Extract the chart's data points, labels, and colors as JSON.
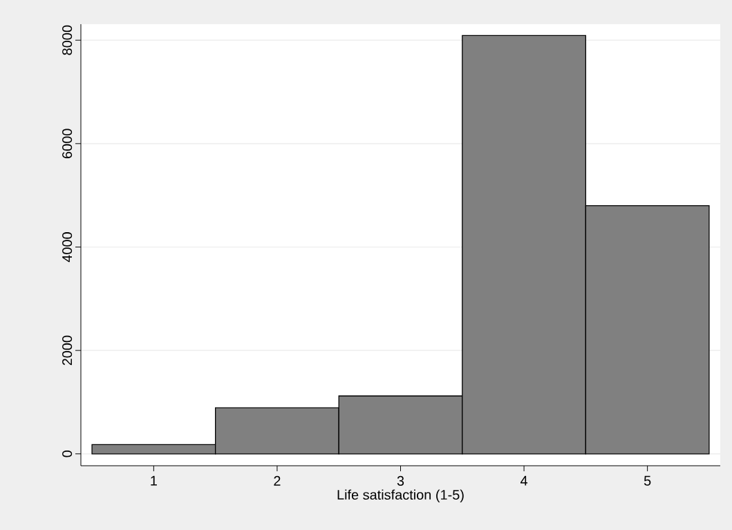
{
  "chart_data": {
    "type": "histogram",
    "xlabel": "Life satisfaction (1-5)",
    "bins": [
      0.5,
      1.5,
      2.5,
      3.5,
      4.5,
      5.5
    ],
    "values": [
      180,
      890,
      1120,
      8090,
      4800
    ],
    "color": "#808080",
    "xlim": [
      0.41,
      5.59
    ],
    "ylim": [
      -230,
      8310
    ],
    "xticks": [
      1,
      2,
      3,
      4,
      5
    ],
    "yticks": [
      0,
      2000,
      4000,
      6000,
      8000
    ],
    "grid": "y"
  }
}
